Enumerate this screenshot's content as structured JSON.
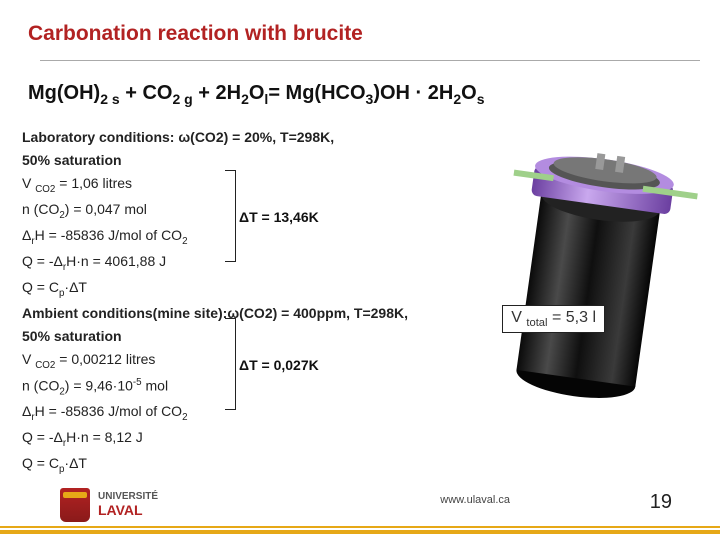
{
  "title": "Carbonation reaction with brucite",
  "equation_html": "Mg(OH)<sub>2 s</sub> + CO<sub>2 g</sub> + 2H<sub>2</sub>O<sub>l</sub>= Mg(HCO<sub>3</sub>)OH · 2H<sub>2</sub>O<sub>s</sub>",
  "lab": {
    "heading": "Laboratory conditions: ω(CO2) = 20%, T=298K,",
    "sat": "50% saturation",
    "l1_html": "V <sub>CO2</sub> = 1,06 litres",
    "l2_html": "n (CO<sub>2</sub>) = 0,047 mol",
    "l3_html": "Δ<sub>r</sub>H = -85836 J/mol of CO<sub>2</sub>",
    "l4_html": "Q = -Δ<sub>r</sub>H·n = 4061,88 J",
    "l5_html": "Q = C<sub>p</sub>·ΔT",
    "dT": "ΔT = 13,46K"
  },
  "amb": {
    "heading": "Ambient conditions(mine site):ω(CO2) = 400ppm, T=298K,",
    "sat": " 50% saturation",
    "l1_html": "V <sub>CO2</sub> = 0,00212 litres",
    "l2_html": "n (CO<sub>2</sub>) = 9,46·10<sup>-5</sup> mol",
    "l3_html": "Δ<sub>r</sub>H = -85836 J/mol of CO<sub>2</sub>",
    "l4_html": "Q = -Δ<sub>r</sub>H·n = 8,12 J",
    "l5_html": "Q = C<sub>p</sub>·ΔT",
    "dT": "ΔT = 0,027K"
  },
  "vtotal_html": "V <sub>total</sub> = 5,3 l",
  "footer": {
    "url": "www.ulaval.ca",
    "page": "19",
    "uni1": "UNIVERSITÉ",
    "uni2": "LAVAL"
  },
  "vessel": {
    "body_color": "#1a1a1a",
    "body_highlight": "#4a4a4a",
    "ring_color": "#8a52c4",
    "ring_highlight": "#b38ce0",
    "cap_color": "#666",
    "probe_color": "#9fd08a"
  }
}
